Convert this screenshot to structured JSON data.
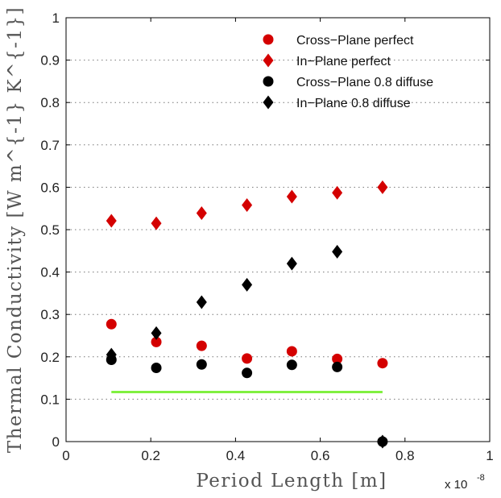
{
  "chart_data": {
    "type": "scatter",
    "xlabel": "Period Length [m]",
    "ylabel": "Thermal Conductivity [W m^{-1} K^{-1}]",
    "x_multiplier": {
      "base": "x 10",
      "exponent": "-8"
    },
    "xlim": [
      0,
      1
    ],
    "ylim": [
      0,
      1
    ],
    "x_ticks": [
      0,
      0.2,
      0.4,
      0.6,
      0.8,
      1
    ],
    "x_tick_labels": [
      "0",
      "0.2",
      "0.4",
      "0.6",
      "0.8",
      "1"
    ],
    "y_ticks": [
      0,
      0.1,
      0.2,
      0.3,
      0.4,
      0.5,
      0.6,
      0.7,
      0.8,
      0.9,
      1
    ],
    "y_tick_labels": [
      "0",
      "0.1",
      "0.2",
      "0.3",
      "0.4",
      "0.5",
      "0.6",
      "0.7",
      "0.8",
      "0.9",
      "1"
    ],
    "grid": "horizontal dotted",
    "legend_position": "top-right",
    "series": [
      {
        "name": "Cross−Plane perfect",
        "marker": "circle",
        "color": "#d40000",
        "x": [
          0.107,
          0.213,
          0.32,
          0.427,
          0.533,
          0.64,
          0.747
        ],
        "y": [
          0.277,
          0.235,
          0.226,
          0.196,
          0.213,
          0.195,
          0.185
        ]
      },
      {
        "name": "In−Plane perfect",
        "marker": "diamond",
        "color": "#d40000",
        "x": [
          0.107,
          0.213,
          0.32,
          0.427,
          0.533,
          0.64,
          0.747
        ],
        "y": [
          0.521,
          0.515,
          0.539,
          0.558,
          0.578,
          0.587,
          0.6
        ]
      },
      {
        "name": "Cross−Plane 0.8 diffuse",
        "marker": "circle",
        "color": "#000000",
        "x": [
          0.107,
          0.213,
          0.32,
          0.427,
          0.533,
          0.64,
          0.747
        ],
        "y": [
          0.193,
          0.174,
          0.182,
          0.162,
          0.181,
          0.176,
          0.0
        ]
      },
      {
        "name": "In−Plane 0.8 diffuse",
        "marker": "diamond",
        "color": "#000000",
        "x": [
          0.107,
          0.213,
          0.32,
          0.427,
          0.533,
          0.64,
          0.747
        ],
        "y": [
          0.205,
          0.256,
          0.329,
          0.37,
          0.42,
          0.448,
          0.0
        ]
      }
    ],
    "reference_line": {
      "color": "#80f040",
      "x": [
        0.107,
        0.747
      ],
      "y": [
        0.117,
        0.117
      ]
    }
  }
}
